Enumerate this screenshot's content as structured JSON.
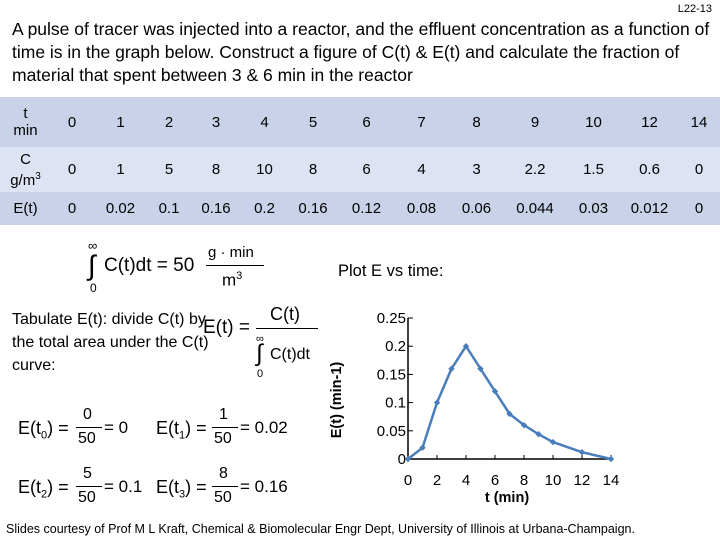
{
  "slide_number": "L22-13",
  "title": "A pulse of tracer was injected into a reactor, and the effluent concentration as a function of time is in the graph below.  Construct a figure of C(t) & E(t) and calculate the fraction of material that spent between 3 & 6 min in the reactor",
  "table": {
    "row_t": {
      "label_line1": "t",
      "label_line2": "min",
      "values": [
        "0",
        "1",
        "2",
        "3",
        "4",
        "5",
        "6",
        "7",
        "8",
        "9",
        "10",
        "12",
        "14"
      ]
    },
    "row_c": {
      "label_line1": "C",
      "label_line2": "g/m",
      "label_sup": "3",
      "values": [
        "0",
        "1",
        "5",
        "8",
        "10",
        "8",
        "6",
        "4",
        "3",
        "2.2",
        "1.5",
        "0.6",
        "0"
      ]
    },
    "row_e": {
      "label": "E(t)",
      "values": [
        "0",
        "0.02",
        "0.1",
        "0.16",
        "0.2",
        "0.16",
        "0.12",
        "0.08",
        "0.06",
        "0.044",
        "0.03",
        "0.012",
        "0"
      ]
    }
  },
  "integral_eq": {
    "upper": "∞",
    "lower": "0",
    "body": "C(t)dt = 50",
    "unit_num": "g · min",
    "unit_den": "m",
    "unit_sup": "3"
  },
  "tabulate_text": "Tabulate E(t): divide C(t) by the total area under the C(t) curve:",
  "e_def": {
    "lhs": "E(t) =",
    "num": "C(t)",
    "den": "C(t)dt",
    "upper": "∞",
    "lower": "0"
  },
  "calcs": [
    {
      "lhs": "E(t",
      "sub": "0",
      "num": "0",
      "den": "50",
      "rhs": "= 0"
    },
    {
      "lhs": "E(t",
      "sub": "1",
      "num": "1",
      "den": "50",
      "rhs": "= 0.02"
    },
    {
      "lhs": "E(t",
      "sub": "2",
      "num": "5",
      "den": "50",
      "rhs": "= 0.1"
    },
    {
      "lhs": "E(t",
      "sub": "3",
      "num": "8",
      "den": "50",
      "rhs": "= 0.16"
    }
  ],
  "plot_title": "Plot E vs time:",
  "chart_data": {
    "type": "line",
    "x": [
      0,
      1,
      2,
      3,
      4,
      5,
      6,
      7,
      8,
      9,
      10,
      12,
      14
    ],
    "y": [
      0,
      0.02,
      0.1,
      0.16,
      0.2,
      0.16,
      0.12,
      0.08,
      0.06,
      0.044,
      0.03,
      0.012,
      0
    ],
    "xlabel": "t (min)",
    "ylabel": "E(t) (min-1)",
    "xticks": [
      "0",
      "2",
      "4",
      "6",
      "8",
      "10",
      "12",
      "14"
    ],
    "yticks": [
      "0",
      "0.05",
      "0.1",
      "0.15",
      "0.2",
      "0.25"
    ],
    "xlim": [
      0,
      14
    ],
    "ylim": [
      0,
      0.25
    ],
    "grid": false,
    "line_color": "#4a7ebb"
  },
  "footer": "Slides courtesy of Prof M L Kraft, Chemical & Biomolecular Engr Dept, University of Illinois at Urbana-Champaign."
}
